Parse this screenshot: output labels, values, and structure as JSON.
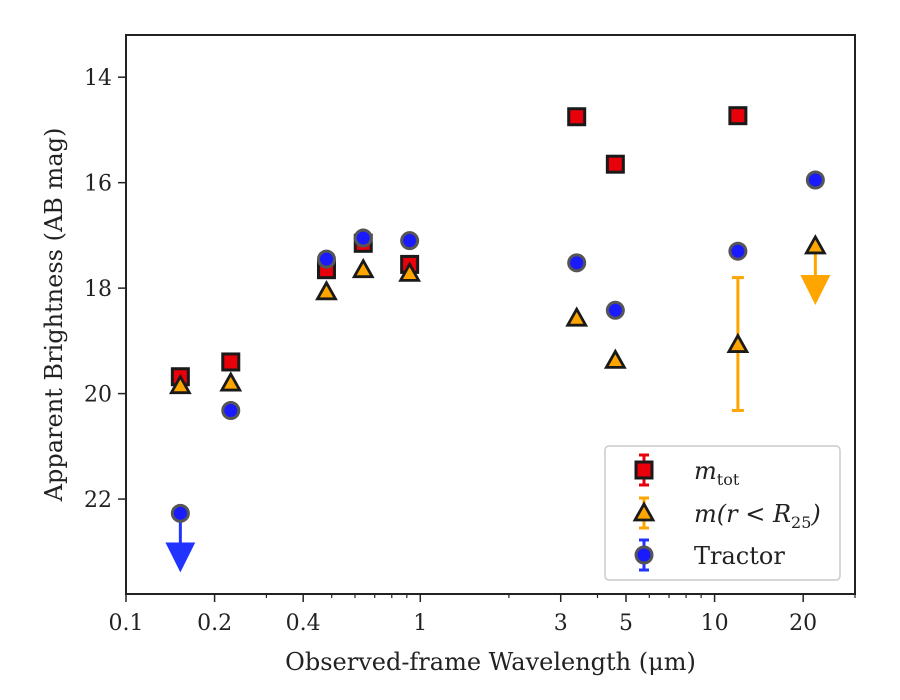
{
  "chart_data": {
    "type": "scatter",
    "xlabel": "Observed-frame Wavelength (μm)",
    "ylabel": "Apparent Brightness (AB mag)",
    "x_scale": "log",
    "xlim": [
      0.1,
      30
    ],
    "ylim": [
      23.8,
      13.2
    ],
    "y_inverted": true,
    "x_ticks": [
      0.1,
      0.2,
      0.4,
      1,
      3,
      5,
      10,
      20
    ],
    "x_tick_labels": [
      "0.1",
      "0.2",
      "0.4",
      "1",
      "3",
      "5",
      "10",
      "20"
    ],
    "y_ticks": [
      14,
      16,
      18,
      20,
      22
    ],
    "y_tick_labels": [
      "14",
      "16",
      "18",
      "20",
      "22"
    ],
    "grid": false,
    "legend_position": "lower-right",
    "series": [
      {
        "name": "m_tot",
        "legend_main": "m",
        "legend_sub": "tot",
        "marker": "square",
        "color": "#e8000b",
        "edge": "#1a1a1a",
        "points": [
          {
            "x": 0.153,
            "y": 19.68
          },
          {
            "x": 0.227,
            "y": 19.4
          },
          {
            "x": 0.48,
            "y": 17.65
          },
          {
            "x": 0.64,
            "y": 17.15
          },
          {
            "x": 0.92,
            "y": 17.55
          },
          {
            "x": 3.4,
            "y": 14.75
          },
          {
            "x": 4.6,
            "y": 15.65
          },
          {
            "x": 12.0,
            "y": 14.73
          }
        ]
      },
      {
        "name": "m(r<R25)",
        "legend_main": "m(r < R",
        "legend_sub": "25",
        "legend_close": ")",
        "marker": "triangle",
        "color": "#ffa500",
        "edge": "#1a1a1a",
        "points": [
          {
            "x": 0.153,
            "y": 19.85
          },
          {
            "x": 0.227,
            "y": 19.8
          },
          {
            "x": 0.48,
            "y": 18.07
          },
          {
            "x": 0.64,
            "y": 17.65
          },
          {
            "x": 0.92,
            "y": 17.72
          },
          {
            "x": 3.4,
            "y": 18.57
          },
          {
            "x": 4.6,
            "y": 19.37
          },
          {
            "x": 12.0,
            "y": 19.07,
            "yerr_low": 17.8,
            "yerr_high": 20.32
          },
          {
            "x": 22.0,
            "y": 17.2,
            "upper_limit": true
          }
        ]
      },
      {
        "name": "Tractor",
        "legend_main": "Tractor",
        "marker": "circle",
        "color": "#1a1aff",
        "edge": "#555555",
        "points": [
          {
            "x": 0.153,
            "y": 22.27,
            "upper_limit": true
          },
          {
            "x": 0.227,
            "y": 20.32
          },
          {
            "x": 0.48,
            "y": 17.45
          },
          {
            "x": 0.64,
            "y": 17.05
          },
          {
            "x": 0.92,
            "y": 17.1
          },
          {
            "x": 3.4,
            "y": 17.52
          },
          {
            "x": 4.6,
            "y": 18.42
          },
          {
            "x": 12.0,
            "y": 17.3
          },
          {
            "x": 22.0,
            "y": 15.95
          }
        ]
      }
    ]
  }
}
